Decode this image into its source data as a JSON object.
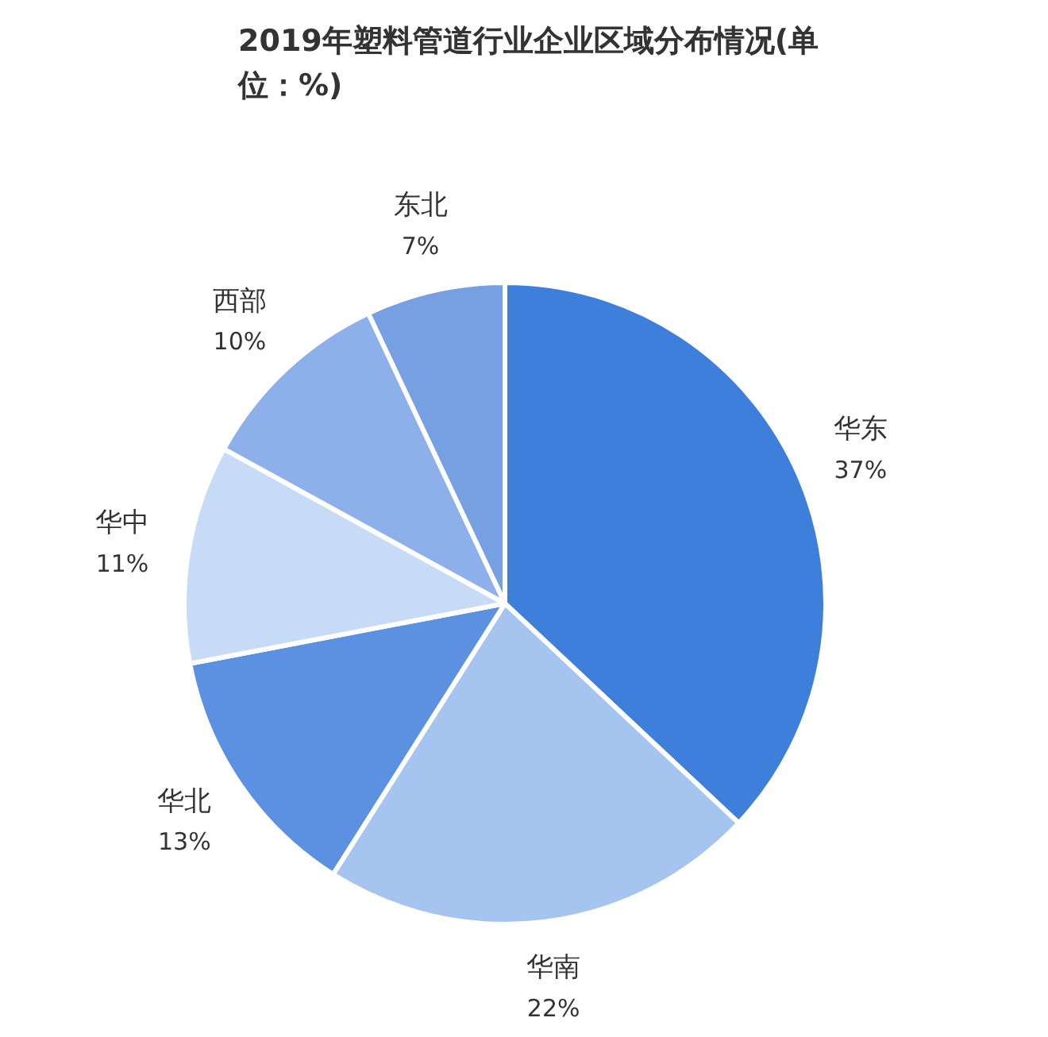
{
  "chart_data": {
    "type": "pie",
    "title": "2019年塑料管道行业企业区域分布情况(单位：%)",
    "categories": [
      "华东",
      "华南",
      "华北",
      "华中",
      "西部",
      "东北"
    ],
    "values": [
      37,
      22,
      13,
      11,
      10,
      7
    ],
    "value_labels": [
      "37%",
      "22%",
      "13%",
      "11%",
      "10%",
      "7%"
    ],
    "colors": [
      "#3f7fdc",
      "#a6c4f0",
      "#5c90e0",
      "#c7dbf6",
      "#8db0ea",
      "#77a0e3"
    ],
    "legend": false
  }
}
